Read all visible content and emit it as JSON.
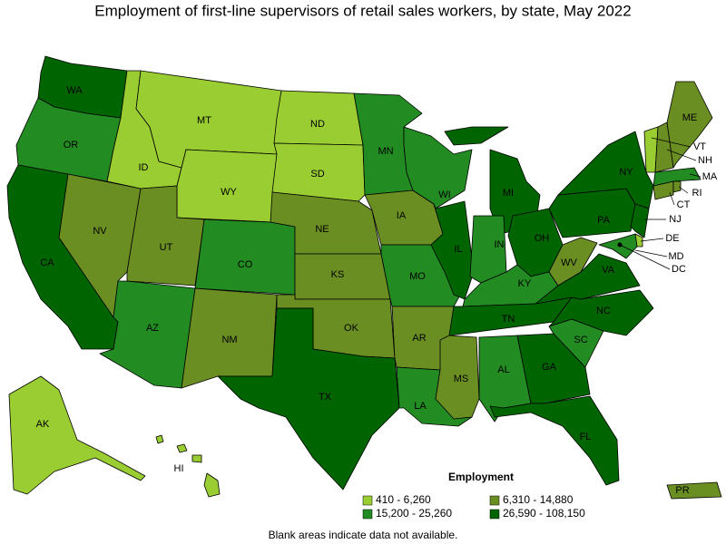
{
  "title": "Employment of first-line supervisors of retail sales workers, by state, May 2022",
  "legend": {
    "title": "Employment",
    "items": [
      {
        "label": "410 - 6,260",
        "color": "#9acd32"
      },
      {
        "label": "6,310 - 14,880",
        "color": "#6b8e23"
      },
      {
        "label": "15,200 - 25,260",
        "color": "#228b22"
      },
      {
        "label": "26,590 - 108,150",
        "color": "#006400"
      }
    ]
  },
  "note": "Blank areas indicate data not available.",
  "states": [
    {
      "abbr": "WA",
      "range": "26,590 - 108,150"
    },
    {
      "abbr": "OR",
      "range": "15,200 - 25,260"
    },
    {
      "abbr": "CA",
      "range": "26,590 - 108,150"
    },
    {
      "abbr": "NV",
      "range": "6,310 - 14,880"
    },
    {
      "abbr": "ID",
      "range": "410 - 6,260"
    },
    {
      "abbr": "MT",
      "range": "410 - 6,260"
    },
    {
      "abbr": "WY",
      "range": "410 - 6,260"
    },
    {
      "abbr": "UT",
      "range": "6,310 - 14,880"
    },
    {
      "abbr": "CO",
      "range": "15,200 - 25,260"
    },
    {
      "abbr": "AZ",
      "range": "15,200 - 25,260"
    },
    {
      "abbr": "NM",
      "range": "6,310 - 14,880"
    },
    {
      "abbr": "ND",
      "range": "410 - 6,260"
    },
    {
      "abbr": "SD",
      "range": "410 - 6,260"
    },
    {
      "abbr": "NE",
      "range": "6,310 - 14,880"
    },
    {
      "abbr": "KS",
      "range": "6,310 - 14,880"
    },
    {
      "abbr": "OK",
      "range": "6,310 - 14,880"
    },
    {
      "abbr": "TX",
      "range": "26,590 - 108,150"
    },
    {
      "abbr": "MN",
      "range": "15,200 - 25,260"
    },
    {
      "abbr": "IA",
      "range": "6,310 - 14,880"
    },
    {
      "abbr": "MO",
      "range": "15,200 - 25,260"
    },
    {
      "abbr": "AR",
      "range": "6,310 - 14,880"
    },
    {
      "abbr": "LA",
      "range": "15,200 - 25,260"
    },
    {
      "abbr": "WI",
      "range": "15,200 - 25,260"
    },
    {
      "abbr": "IL",
      "range": "26,590 - 108,150"
    },
    {
      "abbr": "MI",
      "range": "26,590 - 108,150"
    },
    {
      "abbr": "IN",
      "range": "15,200 - 25,260"
    },
    {
      "abbr": "OH",
      "range": "26,590 - 108,150"
    },
    {
      "abbr": "KY",
      "range": "15,200 - 25,260"
    },
    {
      "abbr": "TN",
      "range": "26,590 - 108,150"
    },
    {
      "abbr": "MS",
      "range": "6,310 - 14,880"
    },
    {
      "abbr": "AL",
      "range": "15,200 - 25,260"
    },
    {
      "abbr": "GA",
      "range": "26,590 - 108,150"
    },
    {
      "abbr": "FL",
      "range": "26,590 - 108,150"
    },
    {
      "abbr": "SC",
      "range": "15,200 - 25,260"
    },
    {
      "abbr": "NC",
      "range": "26,590 - 108,150"
    },
    {
      "abbr": "VA",
      "range": "26,590 - 108,150"
    },
    {
      "abbr": "WV",
      "range": "6,310 - 14,880"
    },
    {
      "abbr": "PA",
      "range": "26,590 - 108,150"
    },
    {
      "abbr": "NY",
      "range": "26,590 - 108,150"
    },
    {
      "abbr": "NJ",
      "range": "26,590 - 108,150"
    },
    {
      "abbr": "DE",
      "range": "410 - 6,260"
    },
    {
      "abbr": "MD",
      "range": "15,200 - 25,260"
    },
    {
      "abbr": "DC",
      "range": "26,590 - 108,150"
    },
    {
      "abbr": "CT",
      "range": "6,310 - 14,880"
    },
    {
      "abbr": "RI",
      "range": "6,310 - 14,880"
    },
    {
      "abbr": "MA",
      "range": "15,200 - 25,260"
    },
    {
      "abbr": "VT",
      "range": "410 - 6,260"
    },
    {
      "abbr": "NH",
      "range": "6,310 - 14,880"
    },
    {
      "abbr": "ME",
      "range": "6,310 - 14,880"
    },
    {
      "abbr": "AK",
      "range": "410 - 6,260"
    },
    {
      "abbr": "HI",
      "range": "410 - 6,260"
    },
    {
      "abbr": "PR",
      "range": "6,310 - 14,880"
    }
  ]
}
